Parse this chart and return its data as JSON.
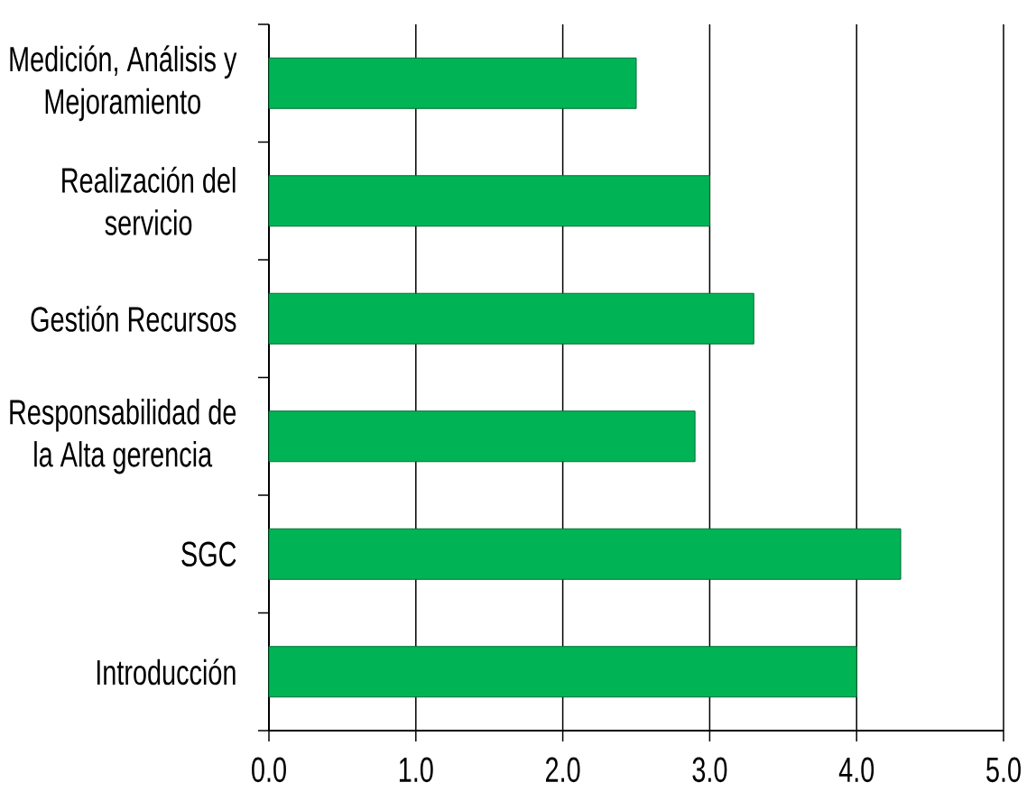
{
  "chart_data": {
    "type": "bar",
    "orientation": "horizontal",
    "categories": [
      "Medición, Análisis y Mejoramiento",
      "Realización del servicio",
      "Gestión Recursos",
      "Responsabilidad de la Alta gerencia",
      "SGC",
      "Introducción"
    ],
    "values": [
      2.5,
      3.0,
      3.3,
      2.9,
      4.3,
      4.0
    ],
    "color": "#00b455",
    "xlim": [
      0,
      5
    ],
    "xticks": [
      {
        "value": 0,
        "label": "0.0"
      },
      {
        "value": 1,
        "label": "1.0"
      },
      {
        "value": 2,
        "label": "2.0"
      },
      {
        "value": 3,
        "label": "3.0"
      },
      {
        "value": 4,
        "label": "4.0"
      },
      {
        "value": 5,
        "label": "5.0"
      }
    ],
    "grid": "x"
  }
}
